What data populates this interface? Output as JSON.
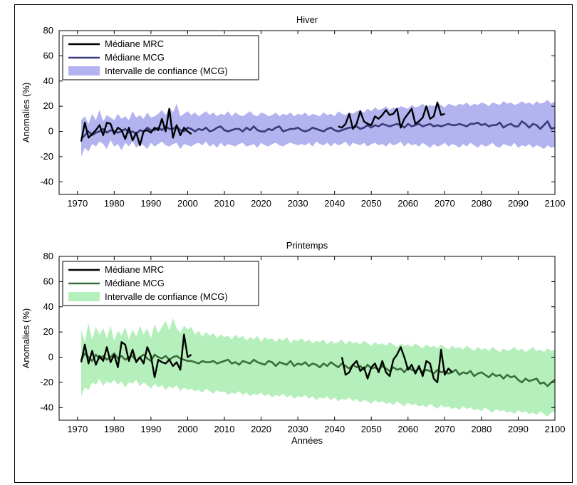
{
  "chart_data": [
    {
      "type": "line",
      "title": "Hiver",
      "xlabel": "",
      "ylabel": "Anomalies (%)",
      "xlim": [
        1965,
        2100
      ],
      "ylim": [
        -50,
        80
      ],
      "xticks": [
        1970,
        1980,
        1990,
        2000,
        2010,
        2020,
        2030,
        2040,
        2050,
        2060,
        2070,
        2080,
        2090,
        2100
      ],
      "yticks": [
        -40,
        -20,
        0,
        20,
        40,
        60,
        80
      ],
      "legend_position": "top-left",
      "colors": {
        "rcm": "#000000",
        "gcm": "#3a3a78",
        "band": "#b3b3f0"
      },
      "series": [
        {
          "name": "Médiane MRC",
          "segments": [
            {
              "x_start": 1971,
              "values": [
                -8,
                7,
                -5,
                -2,
                1,
                5,
                -3,
                7,
                6,
                -2,
                3,
                1,
                -6,
                3,
                -7,
                -1,
                -11,
                0,
                1,
                -1,
                3,
                1,
                10,
                0,
                18,
                -5,
                5,
                -3,
                3,
                0,
                -2
              ]
            },
            {
              "x_start": 2041,
              "values": [
                4,
                3,
                6,
                14,
                2,
                6,
                16,
                8,
                6,
                5,
                12,
                10,
                13,
                17,
                13,
                14,
                18,
                3,
                10,
                14,
                18,
                6,
                8,
                11,
                20,
                10,
                12,
                23,
                13,
                14
              ]
            }
          ]
        },
        {
          "name": "Médiane MCG",
          "x_start": 1971,
          "values": [
            -6,
            -3,
            0,
            -3,
            -1,
            0,
            2,
            -1,
            1,
            0,
            -1,
            0,
            2,
            -1,
            0,
            -2,
            1,
            0,
            3,
            1,
            1,
            3,
            1,
            4,
            2,
            2,
            4,
            1,
            0,
            3,
            2,
            0,
            2,
            1,
            3,
            0,
            1,
            3,
            4,
            1,
            0,
            1,
            2,
            2,
            0,
            3,
            1,
            4,
            1,
            0,
            0,
            2,
            1,
            3,
            4,
            0,
            1,
            2,
            2,
            3,
            1,
            0,
            1,
            3,
            2,
            1,
            0,
            2,
            3,
            1,
            0,
            1,
            2,
            3,
            3,
            4,
            2,
            3,
            5,
            3,
            5,
            4,
            6,
            5,
            4,
            5,
            6,
            5,
            3,
            6,
            4,
            5,
            6,
            4,
            5,
            6,
            4,
            5,
            4,
            5,
            6,
            5,
            5,
            6,
            5,
            4,
            6,
            6,
            7,
            5,
            6,
            4,
            5,
            5,
            7,
            3,
            5,
            6,
            4,
            4,
            8,
            6,
            3,
            6,
            5,
            2,
            5,
            8,
            2,
            3
          ]
        },
        {
          "name": "Intervalle de confiance (MCG)",
          "x_start": 1971,
          "lower": [
            -20,
            -13,
            -16,
            -10,
            -12,
            -8,
            -10,
            -14,
            -7,
            -12,
            -10,
            -15,
            -9,
            -12,
            -8,
            -13,
            -10,
            -11,
            -14,
            -9,
            -12,
            -10,
            -8,
            -11,
            -12,
            -10,
            -9,
            -14,
            -10,
            -11,
            -12,
            -10,
            -9,
            -11,
            -8,
            -12,
            -10,
            -13,
            -9,
            -12,
            -10,
            -11,
            -12,
            -10,
            -9,
            -12,
            -11,
            -10,
            -13,
            -9,
            -11,
            -12,
            -10,
            -9,
            -11,
            -12,
            -10,
            -9,
            -10,
            -11,
            -10,
            -11,
            -9,
            -12,
            -8,
            -10,
            -11,
            -9,
            -12,
            -9,
            -11,
            -10,
            -8,
            -12,
            -9,
            -10,
            -11,
            -9,
            -12,
            -10,
            -9,
            -11,
            -10,
            -12,
            -9,
            -11,
            -10,
            -8,
            -12,
            -9,
            -11,
            -10,
            -12,
            -9,
            -11,
            -13,
            -10,
            -12,
            -11,
            -9,
            -12,
            -10,
            -11,
            -13,
            -10,
            -12,
            -9,
            -11,
            -13,
            -10,
            -12,
            -11,
            -9,
            -12,
            -13,
            -10,
            -11,
            -12,
            -9,
            -13,
            -11,
            -12,
            -10,
            -13,
            -11,
            -12,
            -14,
            -11,
            -13,
            -12
          ],
          "upper": [
            9,
            12,
            6,
            14,
            9,
            17,
            8,
            13,
            11,
            9,
            14,
            10,
            12,
            9,
            16,
            11,
            13,
            10,
            15,
            11,
            12,
            14,
            17,
            13,
            19,
            15,
            22,
            12,
            14,
            16,
            13,
            15,
            12,
            14,
            16,
            13,
            15,
            12,
            14,
            13,
            16,
            12,
            15,
            13,
            12,
            14,
            16,
            13,
            12,
            15,
            14,
            12,
            13,
            15,
            12,
            14,
            13,
            15,
            12,
            14,
            13,
            15,
            12,
            14,
            13,
            12,
            15,
            13,
            14,
            12,
            16,
            14,
            13,
            15,
            14,
            16,
            17,
            15,
            18,
            16,
            19,
            17,
            18,
            20,
            17,
            19,
            18,
            20,
            19,
            18,
            21,
            19,
            20,
            22,
            19,
            21,
            20,
            22,
            21,
            19,
            22,
            21,
            20,
            22,
            21,
            23,
            20,
            22,
            21,
            23,
            22,
            20,
            23,
            22,
            21,
            24,
            22,
            23,
            21,
            22,
            24,
            22,
            23,
            21,
            24,
            22,
            23,
            25,
            22,
            24
          ]
        }
      ]
    },
    {
      "type": "line",
      "title": "Printemps",
      "xlabel": "Années",
      "ylabel": "Anomalies (%)",
      "xlim": [
        1965,
        2100
      ],
      "ylim": [
        -50,
        80
      ],
      "xticks": [
        1970,
        1980,
        1990,
        2000,
        2010,
        2020,
        2030,
        2040,
        2050,
        2060,
        2070,
        2080,
        2090,
        2100
      ],
      "yticks": [
        -40,
        -20,
        0,
        20,
        40,
        60,
        80
      ],
      "legend_position": "top-left",
      "colors": {
        "rcm": "#000000",
        "gcm": "#3c6e3c",
        "band": "#b5efbb"
      },
      "series": [
        {
          "name": "Médiane MRC",
          "segments": [
            {
              "x_start": 1971,
              "values": [
                -4,
                10,
                -5,
                5,
                -6,
                1,
                -3,
                8,
                -4,
                2,
                -8,
                12,
                10,
                -3,
                6,
                -4,
                0,
                -5,
                8,
                1,
                -16,
                -2,
                -4,
                -5,
                -2,
                -7,
                -4,
                -10,
                18,
                0,
                2
              ]
            },
            {
              "x_start": 2042,
              "values": [
                0,
                -14,
                -12,
                -6,
                -3,
                -11,
                -8,
                -17,
                -8,
                -5,
                -12,
                -3,
                -12,
                -15,
                -2,
                2,
                8,
                0,
                -10,
                -6,
                -13,
                -7,
                -15,
                -3,
                -5,
                -17,
                -20,
                6,
                -14,
                -9,
                -12
              ]
            }
          ]
        },
        {
          "name": "Médiane MCG",
          "x_start": 1971,
          "values": [
            -2,
            3,
            0,
            -3,
            2,
            -1,
            1,
            -2,
            0,
            3,
            -1,
            1,
            -2,
            0,
            1,
            -3,
            0,
            2,
            -1,
            -3,
            2,
            0,
            -1,
            1,
            -2,
            0,
            1,
            -1,
            -2,
            -3,
            -3,
            -4,
            -5,
            -3,
            -4,
            -4,
            -3,
            -5,
            -4,
            -3,
            -2,
            -5,
            -4,
            -6,
            -3,
            -4,
            -5,
            -2,
            -4,
            -5,
            -6,
            -3,
            -4,
            -7,
            -4,
            -5,
            -6,
            -3,
            -7,
            -5,
            -6,
            -4,
            -7,
            -5,
            -6,
            -8,
            -5,
            -7,
            -4,
            -6,
            -8,
            -5,
            -7,
            -9,
            -6,
            -8,
            -7,
            -10,
            -6,
            -9,
            -8,
            -10,
            -7,
            -9,
            -11,
            -8,
            -10,
            -9,
            -12,
            -8,
            -10,
            -11,
            -9,
            -12,
            -10,
            -11,
            -13,
            -10,
            -12,
            -11,
            -13,
            -12,
            -10,
            -14,
            -12,
            -13,
            -11,
            -15,
            -13,
            -12,
            -14,
            -16,
            -13,
            -15,
            -14,
            -17,
            -14,
            -16,
            -15,
            -18,
            -20,
            -17,
            -19,
            -18,
            -17,
            -21,
            -20,
            -23,
            -20,
            -18
          ]
        },
        {
          "name": "Intervalle de confiance (MCG)",
          "x_start": 1971,
          "lower": [
            -31,
            -24,
            -26,
            -20,
            -22,
            -17,
            -23,
            -19,
            -21,
            -18,
            -22,
            -19,
            -24,
            -20,
            -21,
            -18,
            -23,
            -20,
            -22,
            -25,
            -21,
            -24,
            -22,
            -26,
            -23,
            -25,
            -22,
            -27,
            -24,
            -26,
            -25,
            -27,
            -26,
            -28,
            -25,
            -27,
            -29,
            -26,
            -28,
            -27,
            -30,
            -28,
            -29,
            -27,
            -30,
            -28,
            -31,
            -29,
            -30,
            -28,
            -31,
            -29,
            -32,
            -30,
            -31,
            -29,
            -32,
            -30,
            -33,
            -31,
            -32,
            -30,
            -33,
            -31,
            -34,
            -32,
            -33,
            -31,
            -34,
            -32,
            -35,
            -33,
            -34,
            -32,
            -35,
            -33,
            -36,
            -34,
            -35,
            -37,
            -34,
            -36,
            -35,
            -37,
            -36,
            -38,
            -35,
            -37,
            -39,
            -36,
            -38,
            -37,
            -39,
            -38,
            -40,
            -37,
            -39,
            -41,
            -38,
            -40,
            -39,
            -41,
            -40,
            -42,
            -39,
            -41,
            -40,
            -42,
            -41,
            -43,
            -40,
            -42,
            -44,
            -41,
            -43,
            -42,
            -44,
            -43,
            -45,
            -42,
            -44,
            -43,
            -45,
            -44,
            -46,
            -43,
            -45,
            -47,
            -44,
            -43
          ],
          "upper": [
            22,
            12,
            27,
            14,
            24,
            18,
            23,
            15,
            25,
            13,
            21,
            17,
            24,
            14,
            22,
            16,
            25,
            18,
            23,
            15,
            26,
            19,
            24,
            29,
            21,
            31,
            23,
            19,
            25,
            22,
            24,
            18,
            21,
            16,
            20,
            17,
            19,
            15,
            18,
            16,
            17,
            14,
            18,
            15,
            17,
            13,
            16,
            14,
            17,
            12,
            16,
            14,
            15,
            12,
            15,
            13,
            16,
            11,
            14,
            13,
            15,
            12,
            14,
            11,
            13,
            12,
            14,
            10,
            13,
            11,
            12,
            14,
            10,
            13,
            11,
            12,
            10,
            13,
            11,
            9,
            12,
            10,
            11,
            9,
            12,
            10,
            8,
            11,
            9,
            10,
            8,
            11,
            9,
            7,
            10,
            8,
            9,
            7,
            10,
            8,
            6,
            9,
            7,
            8,
            6,
            9,
            7,
            5,
            8,
            6,
            7,
            5,
            8,
            6,
            4,
            7,
            5,
            6,
            8,
            5,
            7,
            4,
            6,
            8,
            5,
            6,
            4,
            7,
            5,
            6
          ]
        }
      ]
    }
  ]
}
